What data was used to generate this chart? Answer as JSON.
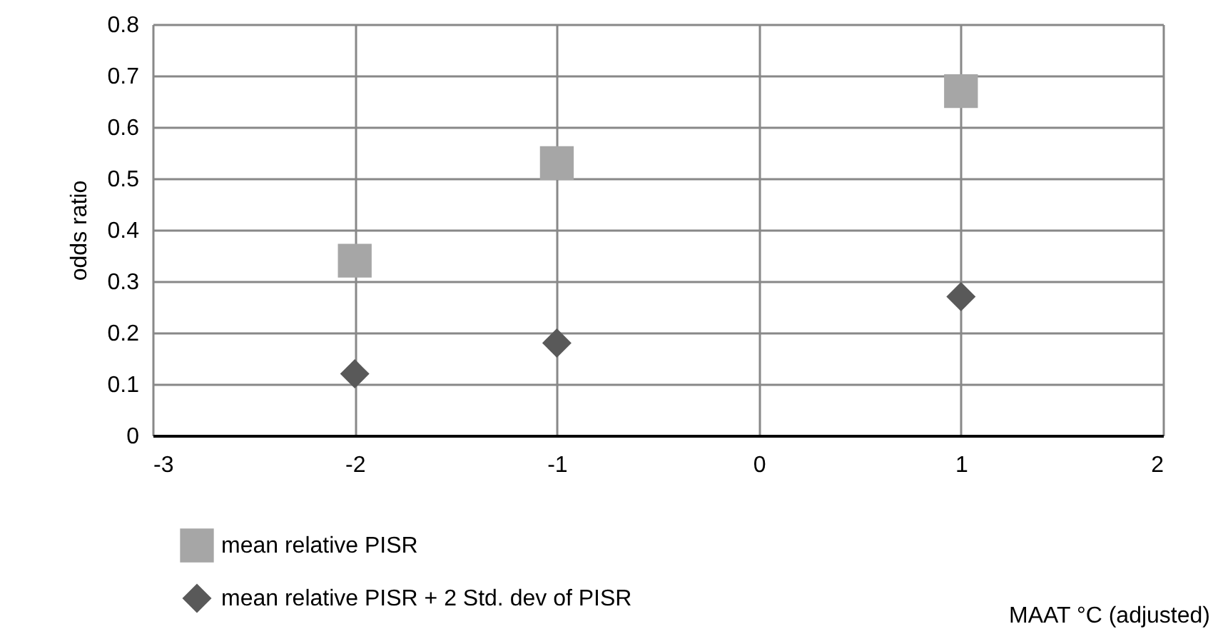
{
  "chart_data": {
    "type": "scatter",
    "annotations": [
      "MAAT °C (adjusted)"
    ],
    "ylabel": "odds ratio",
    "x": [
      -2,
      -1,
      1
    ],
    "series": [
      {
        "name": "mean relative PISR",
        "color": "#a6a6a6",
        "marker": "square",
        "values": [
          0.34,
          0.53,
          0.67
        ]
      },
      {
        "name": "mean relative PISR + 2 Std. dev of PISR",
        "color": "#595959",
        "marker": "diamond",
        "values": [
          0.12,
          0.18,
          0.27
        ]
      }
    ],
    "xlim": [
      -3,
      2
    ],
    "xticks": [
      -3,
      -2,
      -1,
      0,
      1,
      2
    ],
    "ylim": [
      0,
      0.8
    ],
    "yticks": [
      0,
      0.1,
      0.2,
      0.3,
      0.4,
      0.5,
      0.6,
      0.7,
      0.8
    ],
    "grid": true,
    "legend": "bottom left"
  }
}
